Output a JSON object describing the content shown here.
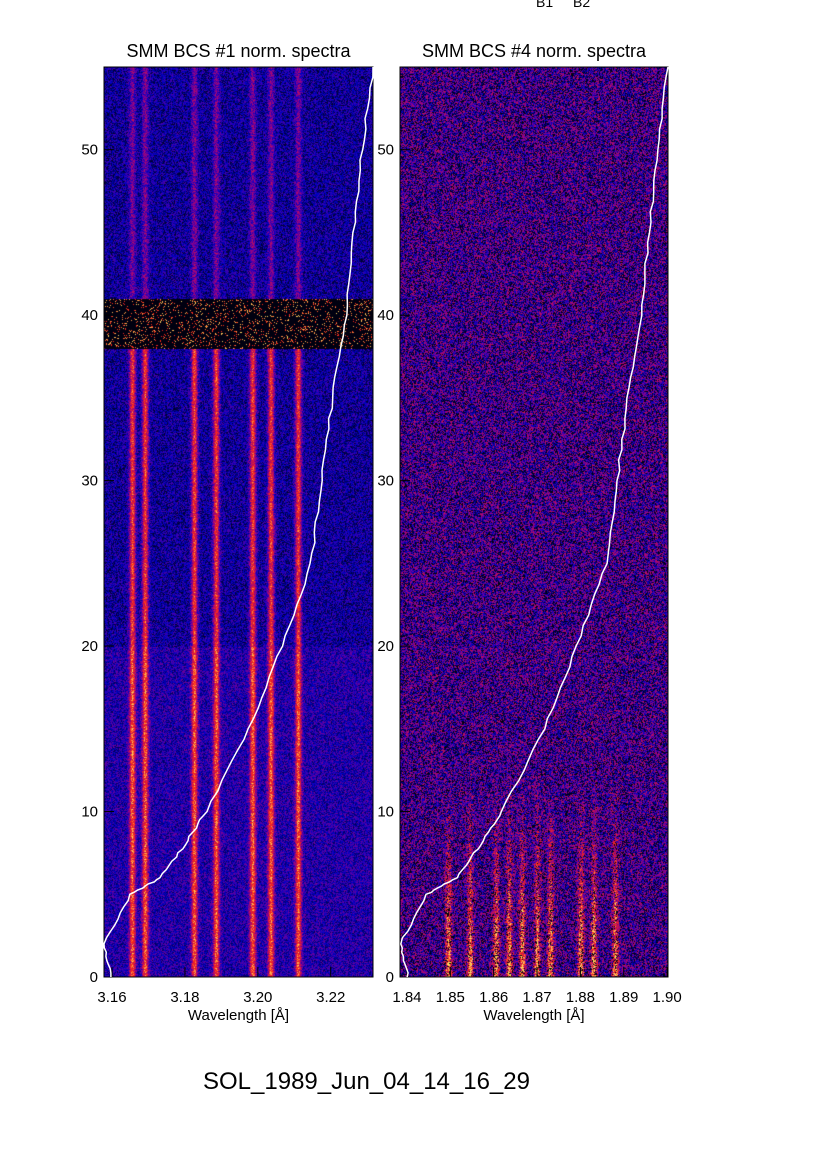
{
  "header_labels": [
    "B1",
    "B2"
  ],
  "footer": "SOL_1989_Jun_04_14_16_29",
  "chart_data": [
    {
      "type": "heatmap",
      "title": "SMM BCS #1 norm. spectra",
      "xlabel": "Wavelength [Å]",
      "ylabel": "",
      "xlim": [
        3.1578,
        3.2316
      ],
      "ylim": [
        0,
        55
      ],
      "xticks": [
        "3.16",
        "3.18",
        "3.20",
        "3.22"
      ],
      "xtick_values": [
        3.16,
        3.18,
        3.2,
        3.22
      ],
      "yticks": [
        "0",
        "10",
        "20",
        "30",
        "40",
        "50"
      ],
      "ytick_values": [
        0,
        10,
        20,
        30,
        40,
        50
      ],
      "emission_lines": [
        3.1655,
        3.169,
        3.1825,
        3.1885,
        3.1985,
        3.2035,
        3.211
      ],
      "data_gap_y": [
        38,
        41
      ],
      "light_curve": {
        "y": [
          0,
          2,
          5,
          6,
          8,
          10,
          15,
          20,
          25,
          30,
          35,
          40,
          45,
          50,
          55
        ],
        "frac": [
          0.03,
          0,
          0.1,
          0.21,
          0.3,
          0.38,
          0.54,
          0.66,
          0.77,
          0.81,
          0.85,
          0.9,
          0.93,
          0.96,
          1.0
        ]
      }
    },
    {
      "type": "heatmap",
      "title": "SMM BCS #4 norm. spectra",
      "xlabel": "Wavelength [Å]",
      "ylabel": "",
      "xlim": [
        1.8384,
        1.9002
      ],
      "ylim": [
        0,
        55
      ],
      "xticks": [
        "1.84",
        "1.85",
        "1.86",
        "1.87",
        "1.88",
        "1.89",
        "1.90"
      ],
      "xtick_values": [
        1.84,
        1.85,
        1.86,
        1.87,
        1.88,
        1.89,
        1.9
      ],
      "yticks": [
        "0",
        "10",
        "20",
        "30",
        "40",
        "50"
      ],
      "ytick_values": [
        0,
        10,
        20,
        30,
        40,
        50
      ],
      "emission_lines": [
        1.8495,
        1.8545,
        1.8605,
        1.8635,
        1.8665,
        1.87,
        1.873,
        1.88,
        1.883,
        1.888
      ],
      "data_gap_y": [],
      "light_curve": {
        "y": [
          0,
          2,
          5,
          6,
          8,
          10,
          15,
          20,
          25,
          30,
          35,
          40,
          45,
          50,
          55
        ],
        "frac": [
          0.03,
          0,
          0.1,
          0.21,
          0.3,
          0.38,
          0.54,
          0.66,
          0.77,
          0.81,
          0.85,
          0.9,
          0.93,
          0.96,
          1.0
        ]
      }
    }
  ]
}
